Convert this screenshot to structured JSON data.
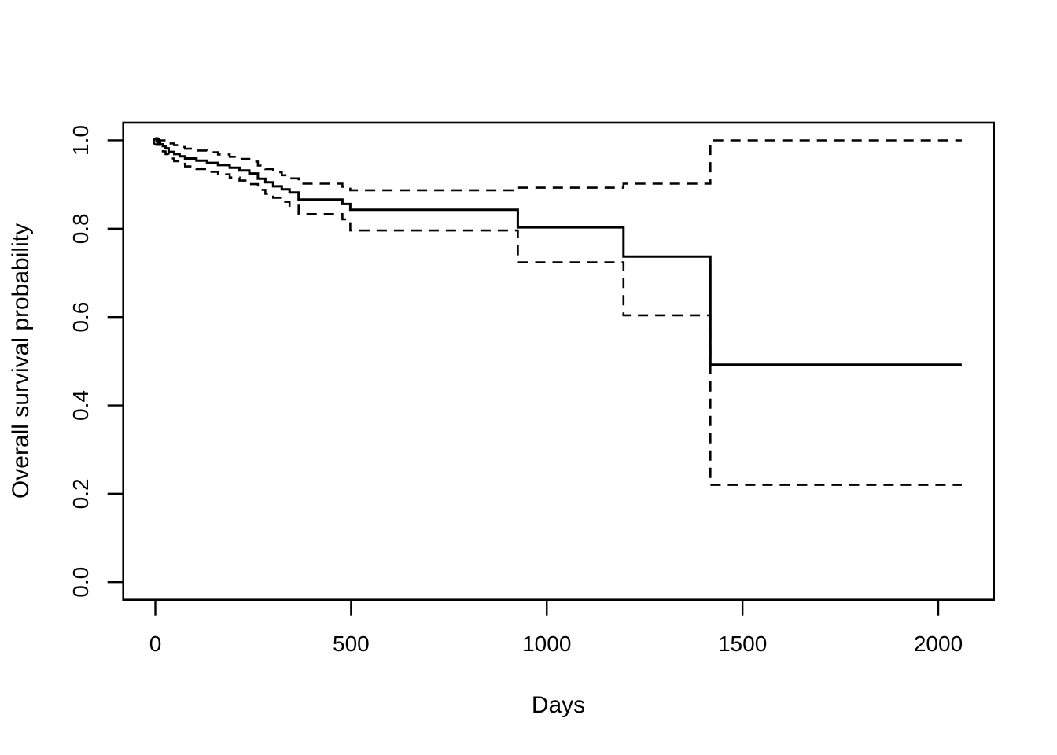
{
  "chart_data": {
    "type": "line",
    "variant": "kaplan-meier-step",
    "title": "",
    "xlabel": "Days",
    "ylabel": "Overall survival probability",
    "xlim": [
      -82,
      2142
    ],
    "ylim": [
      -0.04,
      1.04
    ],
    "xticks": {
      "values": [
        0,
        500,
        1000,
        1500,
        2000
      ],
      "labels": [
        "0",
        "500",
        "1000",
        "1500",
        "2000"
      ]
    },
    "yticks": {
      "values": [
        0.0,
        0.2,
        0.4,
        0.6,
        0.8,
        1.0
      ],
      "labels": [
        "0.0",
        "0.2",
        "0.4",
        "0.6",
        "0.8",
        "1.0"
      ]
    },
    "grid": false,
    "legend": "none",
    "end_time": 2060,
    "start_marker": {
      "x": 0,
      "y": 1.0,
      "shape": "open-circle"
    },
    "colors": {
      "line": "#000000",
      "background": "#ffffff"
    },
    "series": [
      {
        "name": "survival-estimate",
        "style": "solid",
        "points": [
          [
            0,
            1.0
          ],
          [
            5,
            0.996
          ],
          [
            12,
            0.991
          ],
          [
            19,
            0.987
          ],
          [
            26,
            0.982
          ],
          [
            34,
            0.974
          ],
          [
            48,
            0.969
          ],
          [
            62,
            0.964
          ],
          [
            76,
            0.959
          ],
          [
            105,
            0.954
          ],
          [
            132,
            0.949
          ],
          [
            160,
            0.944
          ],
          [
            190,
            0.938
          ],
          [
            215,
            0.932
          ],
          [
            240,
            0.925
          ],
          [
            262,
            0.913
          ],
          [
            281,
            0.905
          ],
          [
            301,
            0.896
          ],
          [
            323,
            0.889
          ],
          [
            343,
            0.882
          ],
          [
            366,
            0.866
          ],
          [
            478,
            0.856
          ],
          [
            498,
            0.843
          ],
          [
            926,
            0.803
          ],
          [
            1196,
            0.737
          ],
          [
            1418,
            0.492
          ]
        ]
      },
      {
        "name": "upper-95ci",
        "style": "dashed",
        "points": [
          [
            0,
            1.0
          ],
          [
            26,
            0.997
          ],
          [
            34,
            0.993
          ],
          [
            48,
            0.989
          ],
          [
            62,
            0.985
          ],
          [
            76,
            0.981
          ],
          [
            105,
            0.977
          ],
          [
            132,
            0.973
          ],
          [
            160,
            0.968
          ],
          [
            190,
            0.963
          ],
          [
            215,
            0.958
          ],
          [
            240,
            0.952
          ],
          [
            262,
            0.943
          ],
          [
            281,
            0.935
          ],
          [
            301,
            0.928
          ],
          [
            323,
            0.921
          ],
          [
            343,
            0.914
          ],
          [
            366,
            0.902
          ],
          [
            478,
            0.895
          ],
          [
            498,
            0.887
          ],
          [
            926,
            0.893
          ],
          [
            1196,
            0.902
          ],
          [
            1418,
            1.0
          ]
        ]
      },
      {
        "name": "lower-95ci",
        "style": "dashed",
        "points": [
          [
            0,
            1.0
          ],
          [
            5,
            0.99
          ],
          [
            12,
            0.982
          ],
          [
            19,
            0.975
          ],
          [
            26,
            0.969
          ],
          [
            34,
            0.959
          ],
          [
            48,
            0.953
          ],
          [
            62,
            0.947
          ],
          [
            76,
            0.941
          ],
          [
            105,
            0.935
          ],
          [
            132,
            0.929
          ],
          [
            160,
            0.923
          ],
          [
            190,
            0.916
          ],
          [
            215,
            0.909
          ],
          [
            240,
            0.901
          ],
          [
            262,
            0.888
          ],
          [
            281,
            0.879
          ],
          [
            301,
            0.87
          ],
          [
            323,
            0.861
          ],
          [
            343,
            0.852
          ],
          [
            366,
            0.833
          ],
          [
            478,
            0.821
          ],
          [
            498,
            0.796
          ],
          [
            926,
            0.724
          ],
          [
            1196,
            0.604
          ],
          [
            1418,
            0.22
          ]
        ]
      }
    ]
  }
}
